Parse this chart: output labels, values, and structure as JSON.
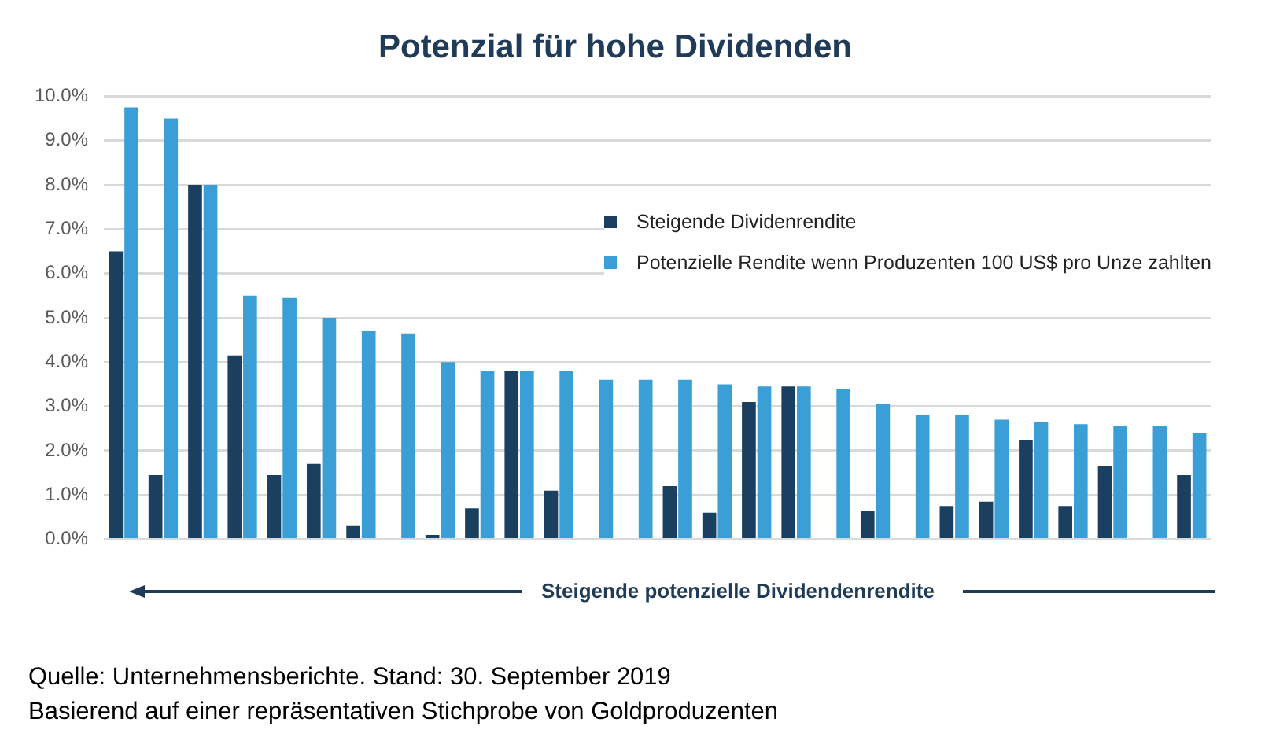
{
  "chart_data": {
    "type": "bar",
    "title": "Potenzial für hohe Dividenden",
    "categories": [
      null,
      null,
      null,
      null,
      null,
      null,
      null,
      null,
      null,
      null,
      null,
      null,
      null,
      null,
      null,
      null,
      null,
      null,
      null,
      null,
      null,
      null,
      null,
      null,
      null,
      null,
      null,
      null
    ],
    "series": [
      {
        "name": "Steigende Dividenrendite",
        "color": "#1b3f5e",
        "values": [
          6.5,
          1.45,
          8.0,
          4.15,
          1.45,
          1.7,
          0.3,
          null,
          0.1,
          0.7,
          3.8,
          1.1,
          null,
          null,
          1.2,
          0.6,
          3.1,
          3.45,
          null,
          0.65,
          null,
          0.75,
          0.85,
          2.25,
          0.75,
          1.65,
          null,
          1.45
        ]
      },
      {
        "name": "Potenzielle Rendite wenn Produzenten 100 US$ pro Unze zahlten",
        "color": "#3a9fd6",
        "values": [
          9.75,
          9.5,
          8.0,
          5.5,
          5.45,
          5.0,
          4.7,
          4.65,
          4.0,
          3.8,
          3.8,
          3.8,
          3.6,
          3.6,
          3.6,
          3.5,
          3.45,
          3.45,
          3.4,
          3.05,
          2.8,
          2.8,
          2.7,
          2.65,
          2.6,
          2.55,
          2.55,
          2.4
        ]
      }
    ],
    "ylim": [
      0,
      10
    ],
    "yticks": [
      {
        "value": 0,
        "label": "0.0%"
      },
      {
        "value": 1,
        "label": "1.0%"
      },
      {
        "value": 2,
        "label": "2.0%"
      },
      {
        "value": 3,
        "label": "3.0%"
      },
      {
        "value": 4,
        "label": "4.0%"
      },
      {
        "value": 5,
        "label": "5.0%"
      },
      {
        "value": 6,
        "label": "6.0%"
      },
      {
        "value": 7,
        "label": "7.0%"
      },
      {
        "value": 8,
        "label": "8.0%"
      },
      {
        "value": 9,
        "label": "9.0%"
      },
      {
        "value": 10,
        "label": "10.0%"
      }
    ],
    "grid": "y",
    "legend": "top right",
    "tick_labels": "y",
    "annotations": [
      "Steigende potenzielle Dividendenrendite",
      "Quelle: Unternehmensberichte. Stand: 30. September 2019",
      "Basierend auf einer repräsentativen Stichprobe von Goldproduzenten"
    ]
  }
}
